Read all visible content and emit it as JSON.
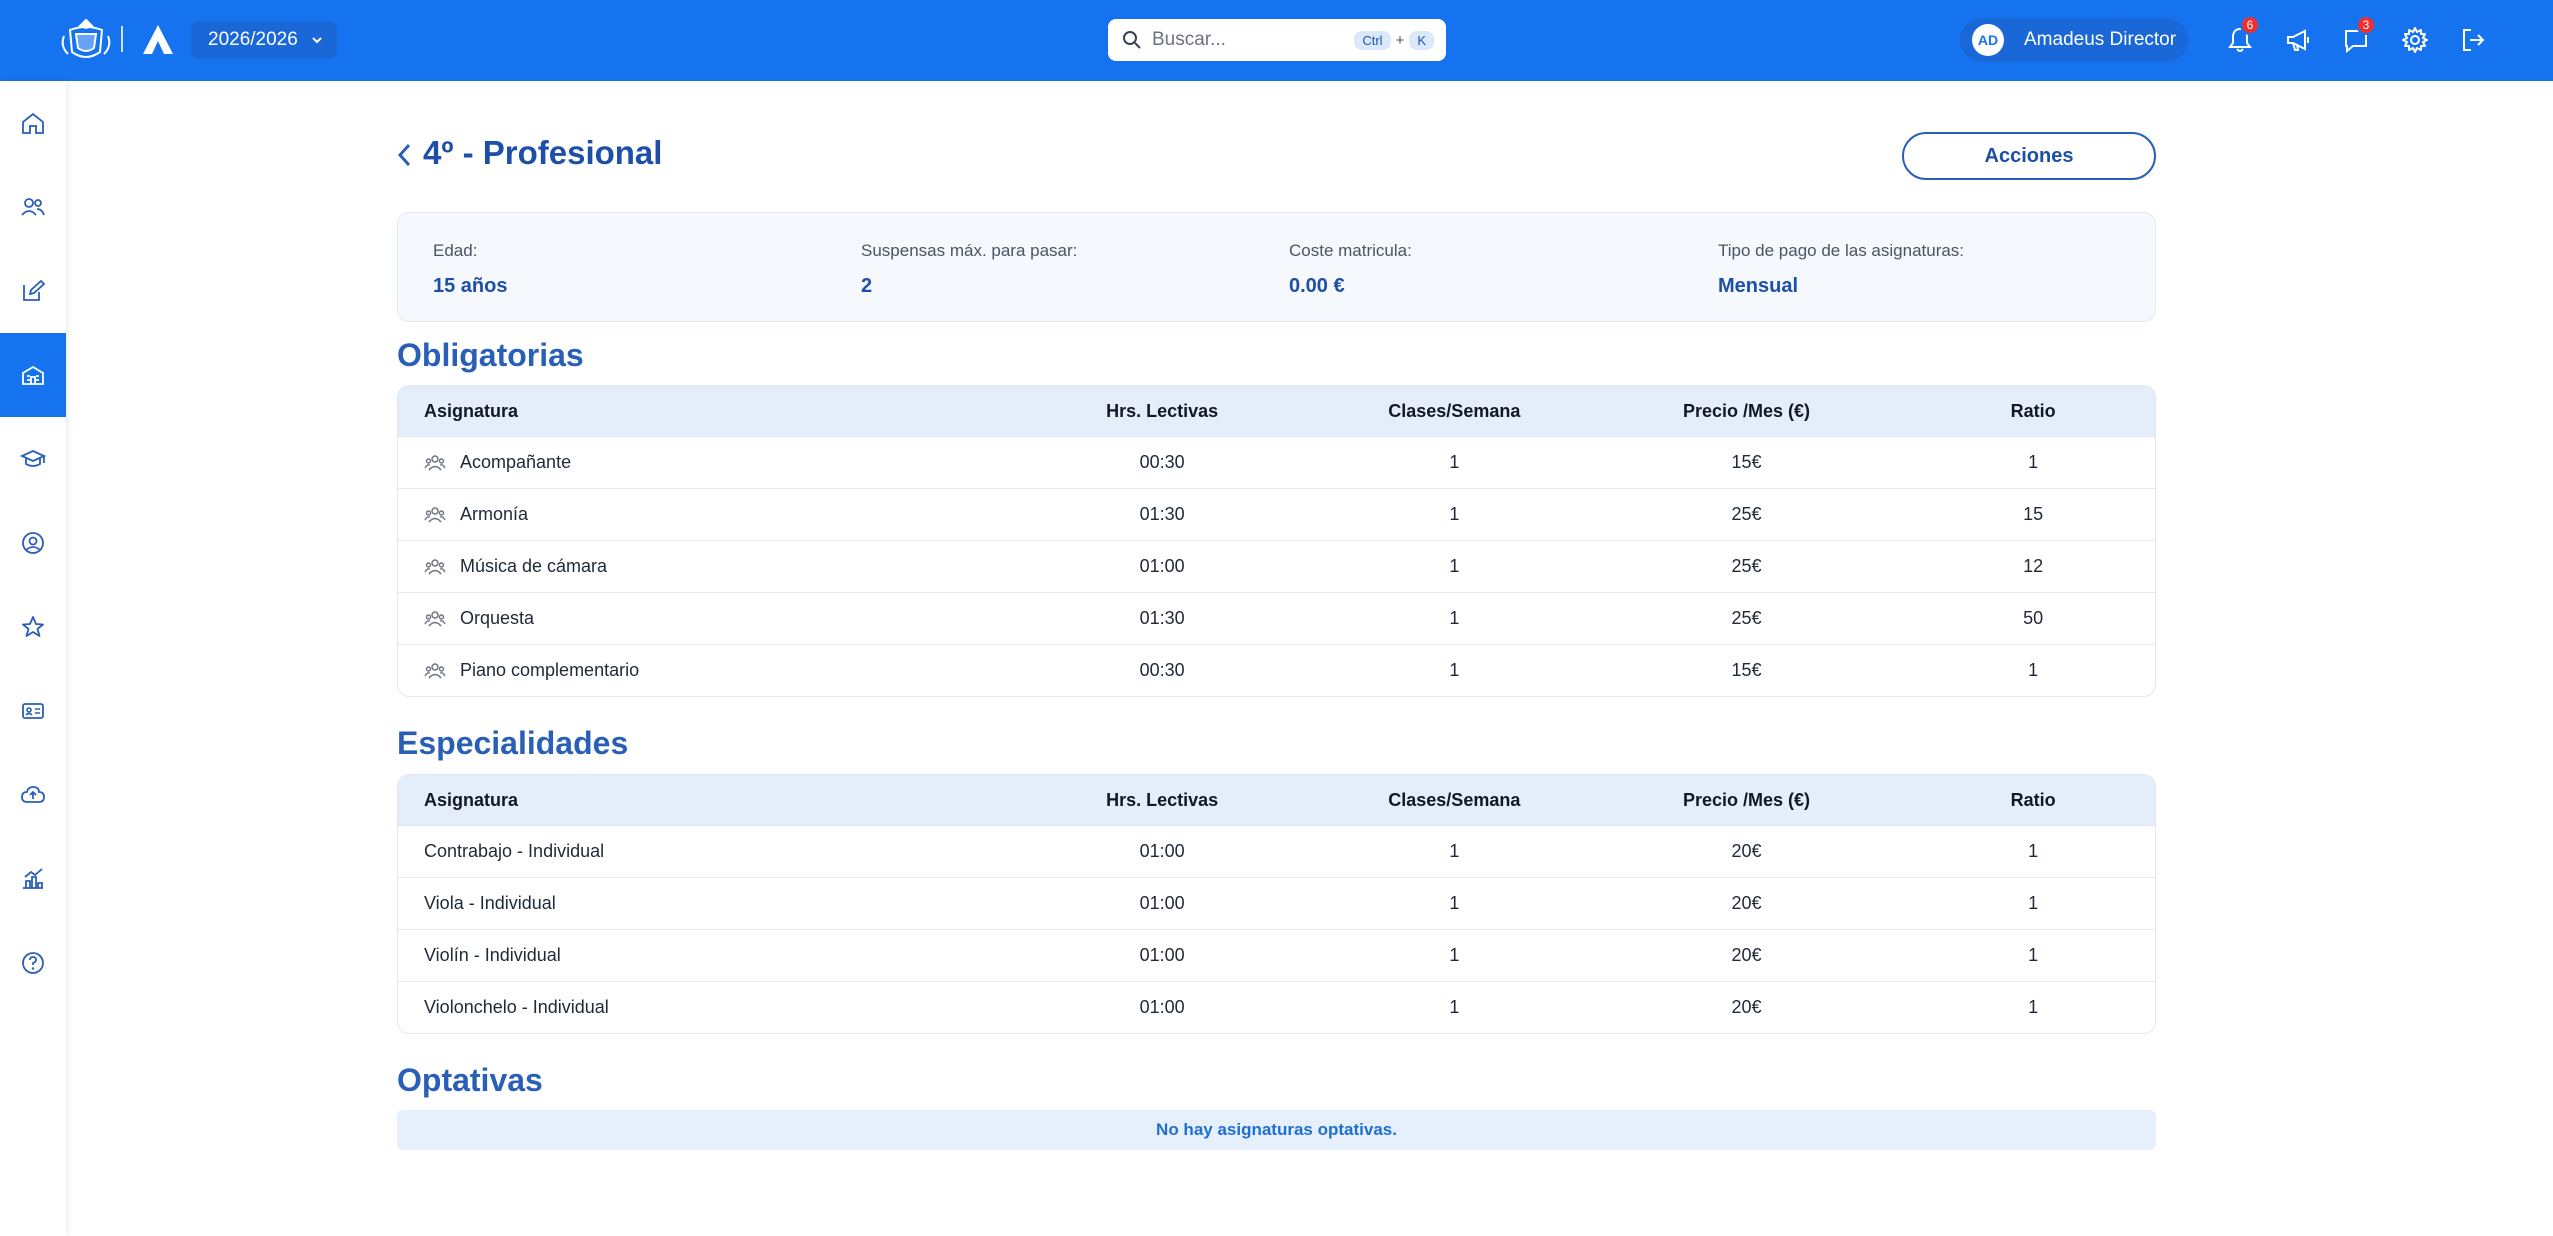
{
  "header": {
    "year": "2026/2026",
    "search": {
      "placeholder": "Buscar...",
      "kbd_ctrl": "Ctrl",
      "kbd_plus": "+",
      "kbd_k": "K"
    },
    "user": {
      "initials": "AD",
      "name": "Amadeus Director"
    },
    "notifications_count": "6",
    "messages_count": "3"
  },
  "page": {
    "title": "4º - Profesional",
    "actions_label": "Acciones"
  },
  "info": [
    {
      "label": "Edad:",
      "value": "15 años"
    },
    {
      "label": "Suspensas máx. para pasar:",
      "value": "2"
    },
    {
      "label": "Coste matricula:",
      "value": "0.00 €"
    },
    {
      "label": "Tipo de pago de las asignaturas:",
      "value": "Mensual"
    }
  ],
  "columns": {
    "subject": "Asignatura",
    "hours": "Hrs. Lectivas",
    "classes": "Clases/Semana",
    "price": "Precio /Mes (€)",
    "ratio": "Ratio"
  },
  "obligatorias": {
    "title": "Obligatorias",
    "rows": [
      {
        "name": "Acompañante",
        "hours": "00:30",
        "classes": "1",
        "price": "15€",
        "ratio": "1"
      },
      {
        "name": "Armonía",
        "hours": "01:30",
        "classes": "1",
        "price": "25€",
        "ratio": "15"
      },
      {
        "name": "Música de cámara",
        "hours": "01:00",
        "classes": "1",
        "price": "25€",
        "ratio": "12"
      },
      {
        "name": "Orquesta",
        "hours": "01:30",
        "classes": "1",
        "price": "25€",
        "ratio": "50"
      },
      {
        "name": "Piano complementario",
        "hours": "00:30",
        "classes": "1",
        "price": "15€",
        "ratio": "1"
      }
    ]
  },
  "especialidades": {
    "title": "Especialidades",
    "rows": [
      {
        "name": "Contrabajo - Individual",
        "hours": "01:00",
        "classes": "1",
        "price": "20€",
        "ratio": "1"
      },
      {
        "name": "Viola - Individual",
        "hours": "01:00",
        "classes": "1",
        "price": "20€",
        "ratio": "1"
      },
      {
        "name": "Violín - Individual",
        "hours": "01:00",
        "classes": "1",
        "price": "20€",
        "ratio": "1"
      },
      {
        "name": "Violonchelo - Individual",
        "hours": "01:00",
        "classes": "1",
        "price": "20€",
        "ratio": "1"
      }
    ]
  },
  "optativas": {
    "title": "Optativas",
    "empty_message": "No hay asignaturas optativas."
  },
  "sidebar": {
    "icons": [
      "home-icon",
      "users-icon",
      "edit-icon",
      "school-icon",
      "graduation-cap-icon",
      "user-circle-icon",
      "star-icon",
      "id-card-icon",
      "cloud-upload-icon",
      "chart-icon",
      "help-icon"
    ],
    "active_index": 3
  },
  "colors": {
    "primary": "#1673f0",
    "title": "#1e4fa8",
    "badge": "#ef2f2f"
  }
}
